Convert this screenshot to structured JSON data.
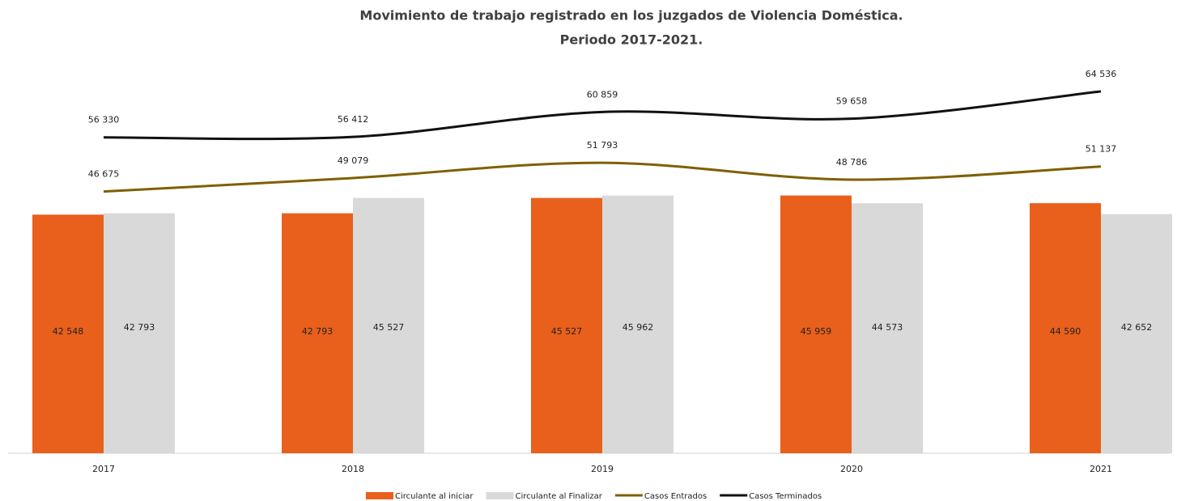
{
  "chart_data": {
    "type": "combo",
    "title": "Movimiento de trabajo registrado en los juzgados de Violencia Doméstica.",
    "subtitle": "Periodo 2017-2021.",
    "categories": [
      "2017",
      "2018",
      "2019",
      "2020",
      "2021"
    ],
    "ylim": [
      0,
      70000
    ],
    "series": [
      {
        "name": "Circulante al iniciar",
        "type": "bar",
        "color": "#e8601c",
        "values": [
          42548,
          42793,
          45527,
          45959,
          44590
        ],
        "value_labels": [
          "42 548",
          "42 793",
          "45 527",
          "45 959",
          "44 590"
        ]
      },
      {
        "name": "Circulante al Finalizar",
        "type": "bar",
        "color": "#d9d9d9",
        "values": [
          42793,
          45527,
          45962,
          44573,
          42652
        ],
        "value_labels": [
          "42 793",
          "45 527",
          "45 962",
          "44 573",
          "42 652"
        ]
      },
      {
        "name": "Casos Entrados",
        "type": "line",
        "color": "#7f6000",
        "values": [
          46675,
          49079,
          51793,
          48786,
          51137
        ],
        "value_labels": [
          "46 675",
          "49 079",
          "51 793",
          "48 786",
          "51 137"
        ]
      },
      {
        "name": "Casos Terminados",
        "type": "line",
        "color": "#111111",
        "values": [
          56330,
          56412,
          60859,
          59658,
          64536
        ],
        "value_labels": [
          "56 330",
          "56 412",
          "60 859",
          "59 658",
          "64 536"
        ]
      }
    ]
  }
}
